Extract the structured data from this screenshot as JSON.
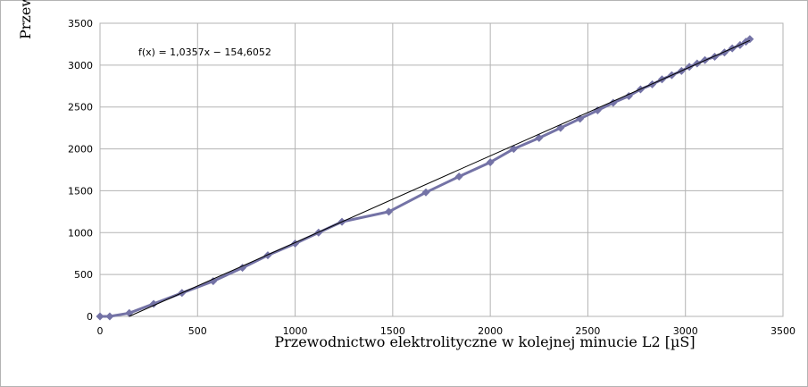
{
  "chart_data": {
    "type": "scatter",
    "xlabel": "Przewodnictwo elektrolityczne w kolejnej minucie L2 [µS]",
    "ylabel": "Przew",
    "xlim": [
      0,
      3500
    ],
    "ylim": [
      0,
      3500
    ],
    "xticks": [
      "0",
      "500",
      "1000",
      "1500",
      "2000",
      "2500",
      "3000",
      "3500"
    ],
    "yticks": [
      "0",
      "500",
      "1000",
      "1500",
      "2000",
      "2500",
      "3000",
      "3500"
    ],
    "grid": true,
    "legend": "none",
    "marker_color": "#7473a6",
    "trendline": {
      "equation": "f(x) = 1,0357x − 154,6052",
      "slope": 1.0357,
      "intercept": -154.6052,
      "color": "#000000"
    },
    "series": [
      {
        "x": [
          0,
          50,
          150,
          275,
          420,
          580,
          730,
          860,
          1000,
          1120,
          1240,
          1480,
          1670,
          1840,
          2000,
          2120,
          2250,
          2360,
          2460,
          2550,
          2630,
          2710,
          2770,
          2830,
          2880,
          2930,
          2980,
          3020,
          3060,
          3100,
          3150,
          3200,
          3240,
          3280,
          3310,
          3330
        ],
        "y": [
          0,
          0,
          40,
          150,
          280,
          420,
          580,
          730,
          870,
          1000,
          1130,
          1250,
          1480,
          1670,
          1840,
          2000,
          2130,
          2250,
          2360,
          2460,
          2550,
          2630,
          2710,
          2770,
          2830,
          2880,
          2930,
          2980,
          3020,
          3060,
          3100,
          3150,
          3200,
          3240,
          3280,
          3310
        ]
      }
    ]
  }
}
